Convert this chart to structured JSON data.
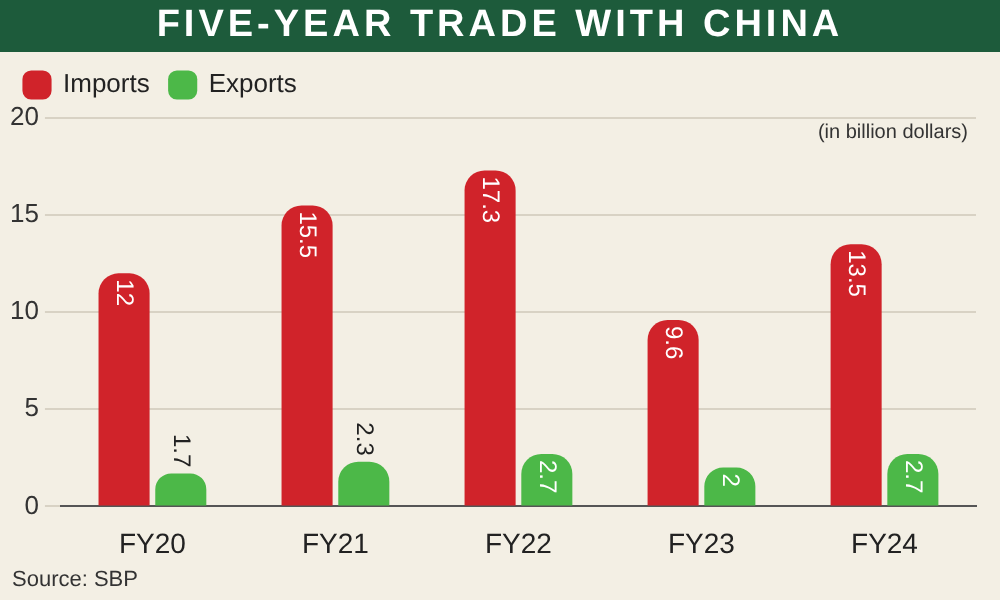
{
  "chart_data": {
    "type": "bar",
    "title": "FIVE-YEAR TRADE WITH CHINA",
    "categories": [
      "FY20",
      "FY21",
      "FY22",
      "FY23",
      "FY24"
    ],
    "series": [
      {
        "name": "Imports",
        "color": "#d0232a",
        "values": [
          12,
          15.5,
          17.3,
          9.6,
          13.5
        ]
      },
      {
        "name": "Exports",
        "color": "#4cb848",
        "values": [
          1.7,
          2.3,
          2.7,
          2,
          2.7
        ]
      }
    ],
    "ylim": [
      0,
      20
    ],
    "yticks": [
      0,
      5,
      10,
      15,
      20
    ],
    "grid": "y",
    "legend": "top left",
    "data_labels": true,
    "annotations": [
      "(in billion dollars)",
      "Source: SBP"
    ]
  }
}
